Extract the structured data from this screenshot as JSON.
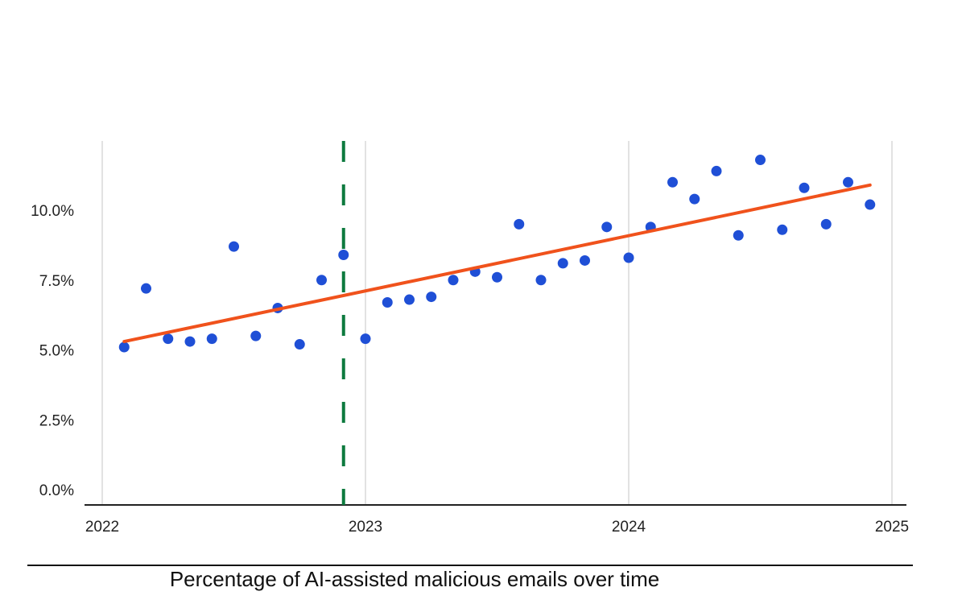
{
  "caption": "Percentage of AI-assisted malicious emails over time",
  "chart_data": {
    "type": "scatter",
    "title": "",
    "xlabel": "",
    "ylabel": "",
    "xlim": [
      "2022-01-01",
      "2025-01-01"
    ],
    "ylim": [
      0,
      13
    ],
    "x_ticks": [
      "2022",
      "2023",
      "2024",
      "2025"
    ],
    "y_ticks": [
      "0.0%",
      "2.5%",
      "5.0%",
      "7.5%",
      "10.0%"
    ],
    "grid": "vertical",
    "colors": {
      "points": "#1f4fd6",
      "trend": "#f0521c",
      "marker_line": "#0d7a3e",
      "grid": "#d9d9d9",
      "axis": "#222222"
    },
    "series": [
      {
        "x": [
          "2022-02",
          "2022-03",
          "2022-04",
          "2022-05",
          "2022-06",
          "2022-07",
          "2022-08",
          "2022-09",
          "2022-10",
          "2022-11",
          "2022-12",
          "2023-01",
          "2023-02",
          "2023-03",
          "2023-04",
          "2023-05",
          "2023-06",
          "2023-07",
          "2023-08",
          "2023-09",
          "2023-10",
          "2023-11",
          "2023-12",
          "2024-01",
          "2024-02",
          "2024-03",
          "2024-04",
          "2024-05",
          "2024-06",
          "2024-07",
          "2024-08",
          "2024-09",
          "2024-10",
          "2024-11",
          "2024-12"
        ],
        "y": [
          5.1,
          7.2,
          5.4,
          5.3,
          5.4,
          8.7,
          5.5,
          6.5,
          5.2,
          7.5,
          8.4,
          5.4,
          6.7,
          6.8,
          6.9,
          7.5,
          7.8,
          7.6,
          9.5,
          7.5,
          8.1,
          8.2,
          9.4,
          8.3,
          9.4,
          11.0,
          10.4,
          11.4,
          9.1,
          11.8,
          9.3,
          10.8,
          9.5,
          11.0,
          10.2
        ]
      }
    ],
    "trendline": {
      "x": [
        "2022-02",
        "2024-12"
      ],
      "y": [
        5.3,
        10.9
      ]
    },
    "vertical_marker": {
      "x": "2022-12",
      "style": "dashed"
    }
  }
}
